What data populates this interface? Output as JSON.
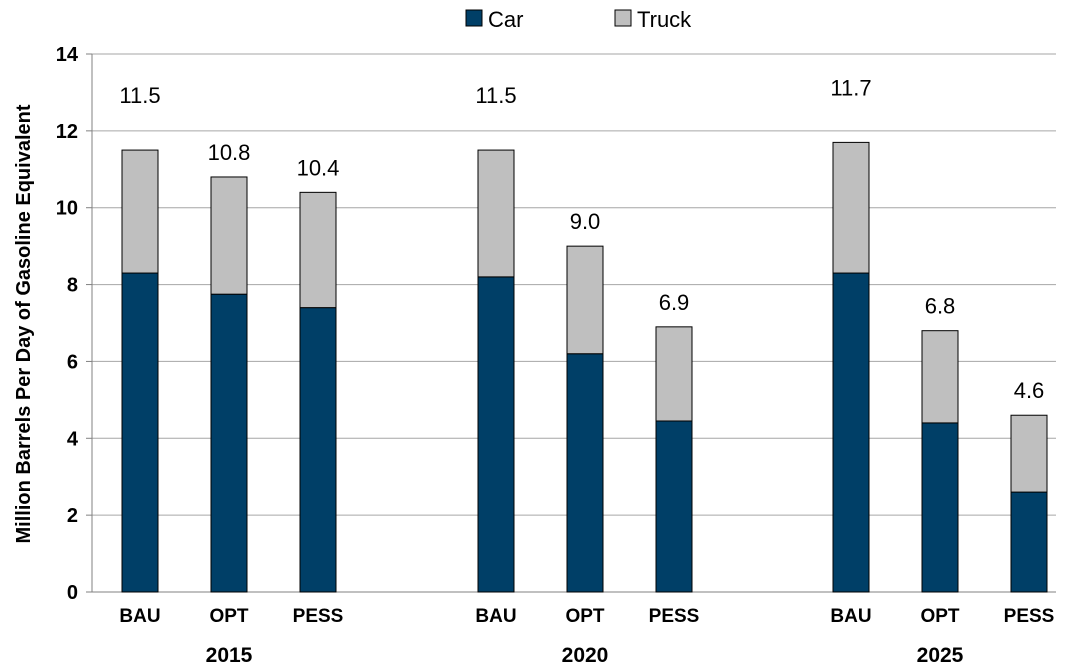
{
  "chart_data": {
    "type": "bar",
    "stacked": true,
    "ylabel": "Million Barrels Per Day of Gasoline Equivalent",
    "ylim": [
      0,
      14
    ],
    "yticks": [
      0,
      2,
      4,
      6,
      8,
      10,
      12,
      14
    ],
    "grid": true,
    "legend_position": "top-center",
    "groups": [
      {
        "label": "2015",
        "categories": [
          "BAU",
          "OPT",
          "PESS"
        ]
      },
      {
        "label": "2020",
        "categories": [
          "BAU",
          "OPT",
          "PESS"
        ]
      },
      {
        "label": "2025",
        "categories": [
          "BAU",
          "OPT",
          "PESS"
        ]
      }
    ],
    "series": [
      {
        "name": "Car",
        "color": "#003f67",
        "values": [
          8.3,
          7.75,
          7.4,
          8.2,
          6.2,
          4.45,
          8.3,
          4.4,
          2.6
        ]
      },
      {
        "name": "Truck",
        "color": "#bfbfbf",
        "values": [
          3.2,
          3.05,
          3.0,
          3.3,
          2.8,
          2.45,
          3.4,
          2.4,
          2.0
        ]
      }
    ],
    "totals_labels": [
      "11.5",
      "10.8",
      "10.4",
      "11.5",
      "9.0",
      "6.9",
      "11.7",
      "6.8",
      "4.6"
    ]
  }
}
